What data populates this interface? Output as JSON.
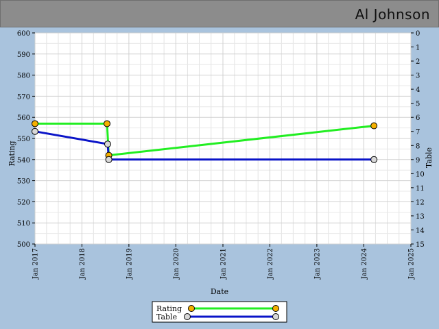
{
  "header": {
    "player_name": "Al Johnson"
  },
  "colors": {
    "background": "#a9c3dd",
    "plot_background": "#ffffff",
    "titlebar": "#8c8c8c",
    "rating_line": "#22ee22",
    "table_line": "#0a14c8",
    "rating_marker": "#f5b000",
    "table_marker": "#d8d8d8"
  },
  "chart_data": {
    "type": "line",
    "title": "",
    "xlabel": "Date",
    "ylabel_left": "Rating",
    "ylabel_right": "Table",
    "x_ticks": [
      "Jan 2017",
      "Jan 2018",
      "Jan 2019",
      "Jan 2020",
      "Jan 2021",
      "Jan 2022",
      "Jan 2023",
      "Jan 2024",
      "Jan 2025"
    ],
    "xlim": [
      "2017-01-01",
      "2025-01-01"
    ],
    "ylim_left": [
      500,
      600
    ],
    "y_ticks_left": [
      500,
      510,
      520,
      530,
      540,
      550,
      560,
      570,
      580,
      590,
      600
    ],
    "ylim_right": [
      15,
      0
    ],
    "y_ticks_right": [
      0,
      1,
      2,
      3,
      4,
      5,
      6,
      7,
      8,
      9,
      10,
      11,
      12,
      13,
      14,
      15
    ],
    "grid": true,
    "legend_position": "bottom-center",
    "series": [
      {
        "name": "Rating",
        "axis": "left",
        "points": [
          {
            "x": "2017-01-01",
            "y": 557
          },
          {
            "x": "2018-07-15",
            "y": 557
          },
          {
            "x": "2018-07-29",
            "y": 542
          },
          {
            "x": "2024-03-20",
            "y": 556
          }
        ]
      },
      {
        "name": "Table",
        "axis": "right",
        "points": [
          {
            "x": "2017-01-01",
            "y": 7
          },
          {
            "x": "2018-07-20",
            "y": 7.9
          },
          {
            "x": "2018-07-29",
            "y": 9
          },
          {
            "x": "2024-03-20",
            "y": 9
          }
        ]
      }
    ]
  }
}
